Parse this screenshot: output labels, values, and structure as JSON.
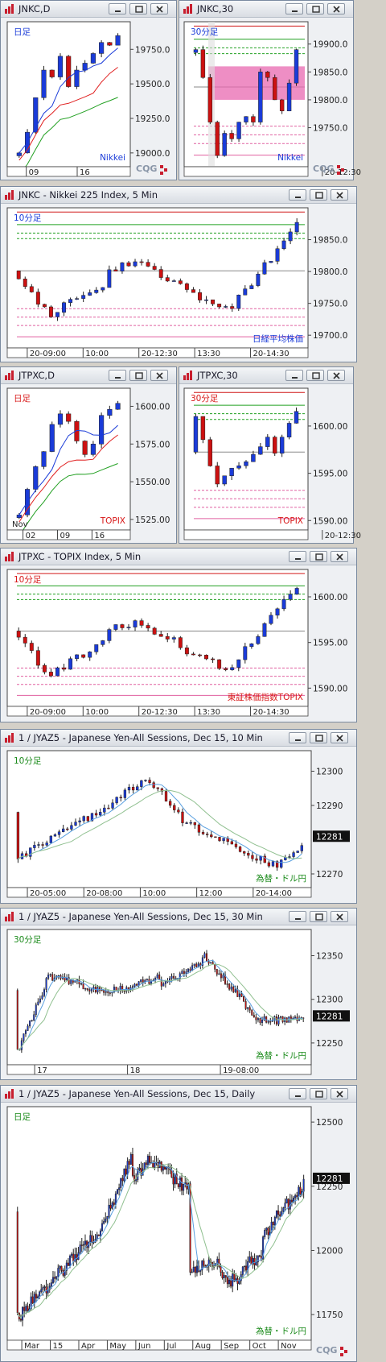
{
  "windows": [
    {
      "id": "w1",
      "title": "JNKC,D",
      "label": "日足",
      "label_color": "#1a3bd8",
      "watermark": "Nikkei",
      "wm_color": "#1a3bd8",
      "yticks": [
        "19750.0",
        "19500.0",
        "19250.0",
        "19000.0"
      ],
      "xticks": [
        "09",
        "16"
      ],
      "cqg": true
    },
    {
      "id": "w2",
      "title": "JNKC,30",
      "label": "30分足",
      "label_color": "#1a3bd8",
      "watermark": "Nikkei",
      "wm_color": "#1a3bd8",
      "yticks": [
        "19900.0",
        "19850.0",
        "19800.0",
        "19750.0"
      ],
      "xticks": [
        "20-12:30"
      ],
      "cqg": true
    },
    {
      "id": "w3",
      "title": "JNKC - Nikkei 225 Index, 5 Min",
      "label": "10分足",
      "label_color": "#1a3bd8",
      "watermark": "日経平均株価",
      "wm_color": "#1a3bd8",
      "yticks": [
        "19850.0",
        "19800.0",
        "19750.0",
        "19700.0"
      ],
      "xticks": [
        "20-09:00",
        "10:00",
        "20-12:30",
        "13:30",
        "20-14:30"
      ],
      "cqg": false
    },
    {
      "id": "w4",
      "title": "JTPXC,D",
      "label": "日足",
      "label_color": "#d81818",
      "watermark": "TOPIX",
      "wm_color": "#d81818",
      "yticks": [
        "1600.00",
        "1575.00",
        "1550.00",
        "1525.00"
      ],
      "xticks": [
        "02",
        "09",
        "16"
      ],
      "extra": "Nov",
      "cqg": false
    },
    {
      "id": "w5",
      "title": "JTPXC,30",
      "label": "30分足",
      "label_color": "#d81818",
      "watermark": "TOPIX",
      "wm_color": "#d81818",
      "yticks": [
        "1600.00",
        "1595.00",
        "1590.00"
      ],
      "xticks": [
        "20-12:30"
      ],
      "cqg": false
    },
    {
      "id": "w6",
      "title": "JTPXC - TOPIX Index, 5 Min",
      "label": "10分足",
      "label_color": "#d81818",
      "watermark": "東証株価指数TOPIX",
      "wm_color": "#d81818",
      "yticks": [
        "1600.00",
        "1595.00",
        "1590.00"
      ],
      "xticks": [
        "20-09:00",
        "10:00",
        "20-12:30",
        "13:30",
        "20-14:30"
      ],
      "cqg": false
    },
    {
      "id": "w7",
      "title": "1 / JYAZ5 - Japanese Yen-All Sessions, Dec 15, 10 Min",
      "label": "10分足",
      "label_color": "#1a8a1a",
      "watermark": "為替・ドル円",
      "wm_color": "#1a8a1a",
      "yticks": [
        "12300",
        "12290",
        "12270"
      ],
      "price": "12281",
      "xticks": [
        "20-05:00",
        "20-08:00",
        "10:00",
        "12:00",
        "20-14:00"
      ],
      "cqg": false
    },
    {
      "id": "w8",
      "title": "1 / JYAZ5 - Japanese Yen-All Sessions, Dec 15, 30 Min",
      "label": "30分足",
      "label_color": "#1a8a1a",
      "watermark": "為替・ドル円",
      "wm_color": "#1a8a1a",
      "yticks": [
        "12350",
        "12300",
        "12250"
      ],
      "price": "12281",
      "xticks": [
        "17",
        "18",
        "19-08:00"
      ],
      "cqg": false
    },
    {
      "id": "w9",
      "title": "1 / JYAZ5 - Japanese Yen-All Sessions, Dec 15, Daily",
      "label": "日足",
      "label_color": "#1a8a1a",
      "watermark": "為替・ドル円",
      "wm_color": "#1a8a1a",
      "yticks": [
        "12500",
        "12250",
        "12000",
        "11750"
      ],
      "price": "12281",
      "xticks": [
        "Mar",
        "15",
        "Apr",
        "May",
        "Jun",
        "Jul",
        "Aug",
        "Sep",
        "Oct",
        "Nov"
      ],
      "cqg": true
    }
  ],
  "cqg_logo": "CQG",
  "colors": {
    "up": "#1a3bd8",
    "down": "#cc1111",
    "bg": "#ffffff",
    "ma_red": "#e02020",
    "ma_blue": "#1a3bd8",
    "ma_green": "#22a022"
  },
  "chart_data": [
    {
      "type": "candlestick",
      "instrument": "Nikkei 225",
      "timeframe": "daily",
      "ylim": [
        18900,
        19950
      ],
      "close_approx": [
        19000,
        19150,
        19400,
        19600,
        19550,
        19700,
        19480,
        19600,
        19650,
        19720,
        19800,
        19780,
        19850
      ]
    },
    {
      "type": "candlestick",
      "instrument": "Nikkei 225",
      "timeframe": "30min",
      "ylim": [
        19680,
        19940
      ],
      "close_approx": [
        19890,
        19840,
        19760,
        19700,
        19740,
        19730,
        19760,
        19770,
        19760,
        19850,
        19840,
        19800,
        19780,
        19830,
        19890
      ]
    },
    {
      "type": "candlestick",
      "instrument": "Nikkei 225",
      "timeframe": "5min",
      "ylim": [
        19680,
        19900
      ],
      "last": 19860
    },
    {
      "type": "candlestick",
      "instrument": "TOPIX",
      "timeframe": "daily",
      "ylim": [
        1518,
        1612
      ],
      "close_approx": [
        1528,
        1545,
        1560,
        1570,
        1588,
        1595,
        1590,
        1577,
        1568,
        1575,
        1594,
        1598,
        1602
      ]
    },
    {
      "type": "candlestick",
      "instrument": "TOPIX",
      "timeframe": "30min",
      "ylim": [
        1589,
        1604
      ],
      "last": 1602
    },
    {
      "type": "candlestick",
      "instrument": "TOPIX",
      "timeframe": "5min",
      "ylim": [
        1588,
        1603
      ],
      "last": 1602
    },
    {
      "type": "candlestick",
      "instrument": "JPY/USD (1/JYAZ5)",
      "timeframe": "10min",
      "ylim": [
        12266,
        12306
      ],
      "last": 12281
    },
    {
      "type": "candlestick",
      "instrument": "JPY/USD (1/JYAZ5)",
      "timeframe": "30min",
      "ylim": [
        12225,
        12380
      ],
      "last": 12281
    },
    {
      "type": "candlestick",
      "instrument": "JPY/USD (1/JYAZ5)",
      "timeframe": "daily",
      "ylim": [
        11650,
        12560
      ],
      "last": 12281
    }
  ]
}
